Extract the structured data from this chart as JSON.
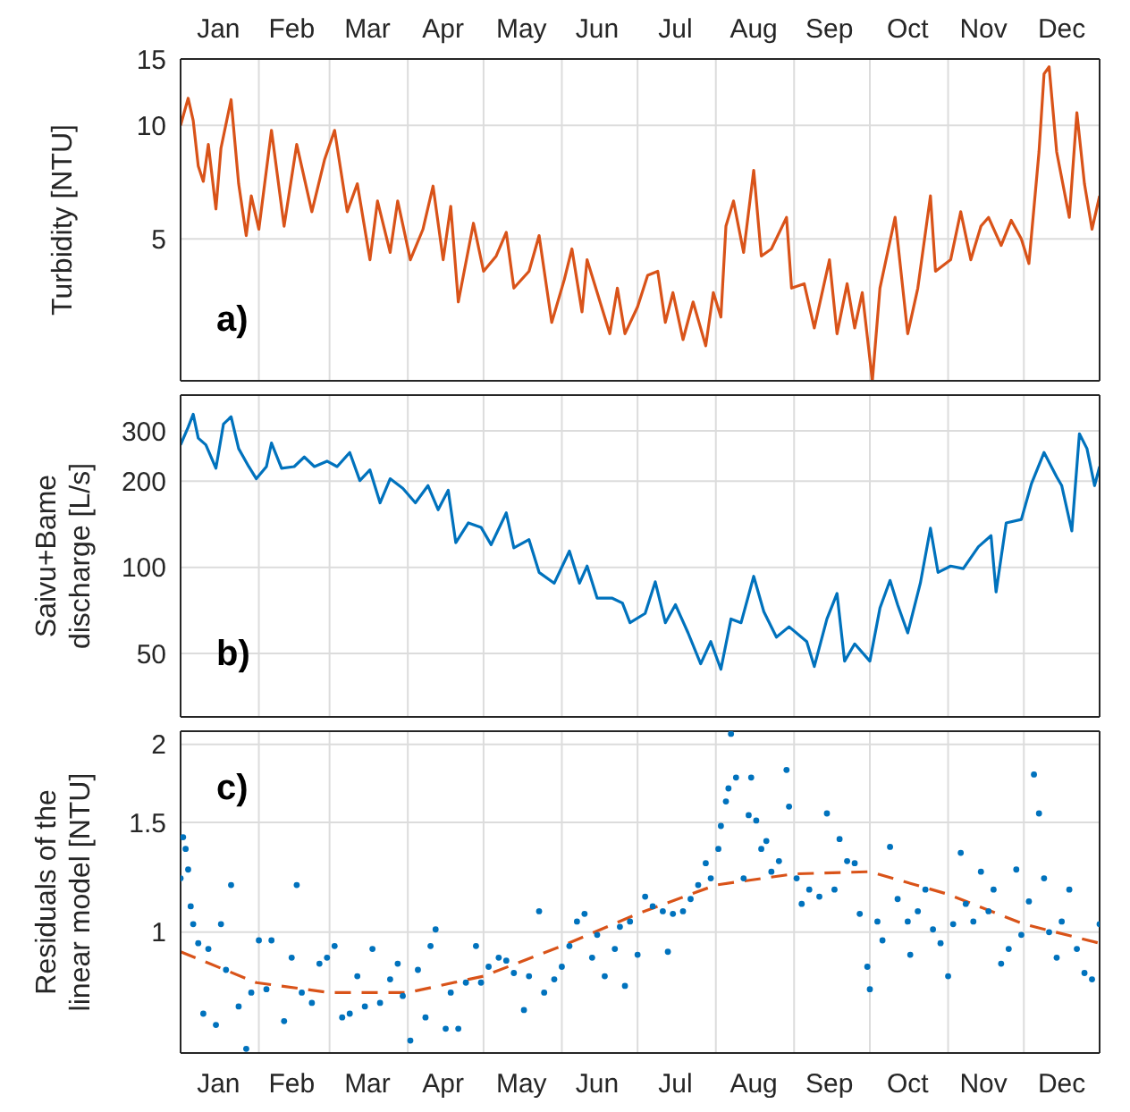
{
  "chart_data": [
    {
      "type": "line",
      "ylabel": "Turbidity [NTU]",
      "annotations": [
        "a)"
      ],
      "log": true,
      "grid": true,
      "marker": "none",
      "xlim": [
        "--01-01",
        "--12-31"
      ],
      "xticks": [
        {
          "value": "--01-16",
          "label": "Jan"
        },
        {
          "value": "--02-01",
          "label": null
        },
        {
          "value": "--02-14",
          "label": "Feb"
        },
        {
          "value": "--03-01",
          "label": null
        },
        {
          "value": "--03-16",
          "label": "Mar"
        },
        {
          "value": "--04-01",
          "label": null
        },
        {
          "value": "--04-15",
          "label": "Apr"
        },
        {
          "value": "--05-01",
          "label": null
        },
        {
          "value": "--05-16",
          "label": "May"
        },
        {
          "value": "--06-01",
          "label": null
        },
        {
          "value": "--06-15",
          "label": "Jun"
        },
        {
          "value": "--07-01",
          "label": null
        },
        {
          "value": "--07-16",
          "label": "Jul"
        },
        {
          "value": "--08-01",
          "label": null
        },
        {
          "value": "--08-16",
          "label": "Aug"
        },
        {
          "value": "--09-01",
          "label": null
        },
        {
          "value": "--09-15",
          "label": "Sep"
        },
        {
          "value": "--10-01",
          "label": null
        },
        {
          "value": "--10-16",
          "label": "Oct"
        },
        {
          "value": "--11-01",
          "label": null
        },
        {
          "value": "--11-15",
          "label": "Nov"
        },
        {
          "value": "--12-01",
          "label": null
        },
        {
          "value": "--12-16",
          "label": "Dec"
        }
      ],
      "ylim": [
        2.1,
        15
      ],
      "yticks": [
        5,
        10,
        15
      ],
      "series": [
        {
          "color": "#d95319",
          "x": [
            "--01-01",
            "--01-04",
            "--01-06",
            "--01-08",
            "--01-10",
            "--01-12",
            "--01-15",
            "--01-17",
            "--01-21",
            "--01-24",
            "--01-27",
            "--01-29",
            "--02-01",
            "--02-06",
            "--02-11",
            "--02-16",
            "--02-22",
            "--02-27",
            "--03-03",
            "--03-08",
            "--03-12",
            "--03-17",
            "--03-20",
            "--03-25",
            "--03-28",
            "--04-02",
            "--04-07",
            "--04-11",
            "--04-15",
            "--04-18",
            "--04-21",
            "--04-27",
            "--05-01",
            "--05-06",
            "--05-10",
            "--05-13",
            "--05-19",
            "--05-23",
            "--05-28",
            "--06-02",
            "--06-05",
            "--06-09",
            "--06-11",
            "--06-15",
            "--06-20",
            "--06-23",
            "--06-26",
            "--07-01",
            "--07-05",
            "--07-09",
            "--07-12",
            "--07-15",
            "--07-19",
            "--07-23",
            "--07-28",
            "--07-31",
            "--08-03",
            "--08-05",
            "--08-08",
            "--08-12",
            "--08-16",
            "--08-19",
            "--08-23",
            "--08-29",
            "--08-31",
            "--09-05",
            "--09-09",
            "--09-15",
            "--09-18",
            "--09-22",
            "--09-25",
            "--09-28",
            "--10-02",
            "--10-05",
            "--10-11",
            "--10-16",
            "--10-20",
            "--10-25",
            "--10-27",
            "--11-02",
            "--11-06",
            "--11-10",
            "--11-14",
            "--11-17",
            "--11-22",
            "--11-26",
            "--11-30",
            "--12-03",
            "--12-07",
            "--12-09",
            "--12-11",
            "--12-14",
            "--12-19",
            "--12-22",
            "--12-25",
            "--12-28",
            "--12-31"
          ],
          "values": [
            10,
            11.8,
            10.3,
            7.8,
            7.1,
            8.9,
            6.0,
            8.7,
            11.7,
            7.0,
            5.1,
            6.5,
            5.3,
            9.7,
            5.4,
            8.9,
            5.9,
            8.1,
            9.7,
            5.9,
            7.0,
            4.4,
            6.3,
            4.6,
            6.3,
            4.4,
            5.3,
            6.9,
            4.4,
            6.1,
            3.4,
            5.5,
            4.1,
            4.5,
            5.2,
            3.7,
            4.1,
            5.1,
            3.0,
            3.9,
            4.7,
            3.2,
            4.4,
            3.6,
            2.8,
            3.7,
            2.8,
            3.3,
            4.0,
            4.1,
            3.0,
            3.6,
            2.7,
            3.4,
            2.6,
            3.6,
            3.1,
            5.4,
            6.3,
            4.6,
            7.6,
            4.5,
            4.7,
            5.7,
            3.7,
            3.8,
            2.9,
            4.4,
            2.8,
            3.8,
            2.9,
            3.6,
            2.1,
            3.7,
            5.7,
            2.8,
            3.7,
            6.5,
            4.1,
            4.4,
            5.9,
            4.4,
            5.4,
            5.7,
            4.8,
            5.6,
            5.0,
            4.3,
            8.5,
            13.7,
            14.3,
            8.5,
            5.7,
            10.8,
            7.0,
            5.3,
            6.5
          ]
        }
      ]
    },
    {
      "type": "line",
      "ylabel": "Saivu+Bame discharge [L/s]",
      "annotations": [
        "b)"
      ],
      "log": true,
      "grid": true,
      "marker": "none",
      "tick_labels": "y",
      "xlim": [
        "--01-01",
        "--12-31"
      ],
      "xticks": [
        {
          "value": "--02-01",
          "label": null
        },
        {
          "value": "--03-01",
          "label": null
        },
        {
          "value": "--04-01",
          "label": null
        },
        {
          "value": "--05-01",
          "label": null
        },
        {
          "value": "--06-01",
          "label": null
        },
        {
          "value": "--07-01",
          "label": null
        },
        {
          "value": "--08-01",
          "label": null
        },
        {
          "value": "--09-01",
          "label": null
        },
        {
          "value": "--10-01",
          "label": null
        },
        {
          "value": "--11-01",
          "label": null
        },
        {
          "value": "--12-01",
          "label": null
        }
      ],
      "ylim": [
        30,
        400
      ],
      "yticks": [
        50,
        100,
        200,
        300
      ],
      "series": [
        {
          "color": "#0072bd",
          "x": [
            "--01-01",
            "--01-04",
            "--01-06",
            "--01-08",
            "--01-11",
            "--01-15",
            "--01-18",
            "--01-21",
            "--01-24",
            "--01-28",
            "--01-31",
            "--02-04",
            "--02-06",
            "--02-10",
            "--02-15",
            "--02-19",
            "--02-23",
            "--02-28",
            "--03-04",
            "--03-09",
            "--03-13",
            "--03-17",
            "--03-21",
            "--03-25",
            "--03-30",
            "--04-04",
            "--04-09",
            "--04-13",
            "--04-17",
            "--04-20",
            "--04-25",
            "--04-30",
            "--05-04",
            "--05-10",
            "--05-13",
            "--05-19",
            "--05-23",
            "--05-29",
            "--06-04",
            "--06-08",
            "--06-11",
            "--06-15",
            "--06-21",
            "--06-25",
            "--06-28",
            "--07-04",
            "--07-08",
            "--07-12",
            "--07-16",
            "--07-21",
            "--07-26",
            "--07-30",
            "--08-03",
            "--08-07",
            "--08-11",
            "--08-16",
            "--08-20",
            "--08-25",
            "--08-30",
            "--09-06",
            "--09-09",
            "--09-14",
            "--09-18",
            "--09-21",
            "--09-25",
            "--10-01",
            "--10-05",
            "--10-09",
            "--10-12",
            "--10-16",
            "--10-21",
            "--10-25",
            "--10-28",
            "--11-02",
            "--11-07",
            "--11-13",
            "--11-18",
            "--11-20",
            "--11-24",
            "--11-30",
            "--12-04",
            "--12-09",
            "--12-14",
            "--12-16",
            "--12-20",
            "--12-23",
            "--12-26",
            "--12-29",
            "--12-31"
          ],
          "values": [
            268,
            309,
            343,
            283,
            268,
            222,
            317,
            336,
            260,
            225,
            204,
            225,
            272,
            222,
            225,
            243,
            225,
            235,
            225,
            252,
            201,
            219,
            168,
            204,
            189,
            168,
            193,
            159,
            186,
            122,
            143,
            138,
            120,
            155,
            117,
            125,
            96,
            88,
            114,
            88,
            101,
            78,
            78,
            75,
            64,
            69,
            89,
            64,
            74,
            59,
            46,
            55,
            44,
            66,
            64,
            93,
            70,
            57,
            62,
            55,
            45,
            66,
            81,
            47,
            54,
            47,
            72,
            90,
            74,
            59,
            88,
            137,
            96,
            101,
            99,
            118,
            129,
            82,
            143,
            147,
            196,
            252,
            207,
            193,
            134,
            293,
            260,
            193,
            225
          ]
        }
      ]
    },
    {
      "type": "scatter",
      "ylabel": "Residuals of the linear model [NTU]",
      "annotations": [
        "c)"
      ],
      "log": true,
      "grid": true,
      "xlim": [
        "--01-01",
        "--12-31"
      ],
      "xticks": [
        {
          "value": "--01-16",
          "label": "Jan"
        },
        {
          "value": "--02-01",
          "label": null
        },
        {
          "value": "--02-14",
          "label": "Feb"
        },
        {
          "value": "--03-01",
          "label": null
        },
        {
          "value": "--03-16",
          "label": "Mar"
        },
        {
          "value": "--04-01",
          "label": null
        },
        {
          "value": "--04-15",
          "label": "Apr"
        },
        {
          "value": "--05-01",
          "label": null
        },
        {
          "value": "--05-16",
          "label": "May"
        },
        {
          "value": "--06-01",
          "label": null
        },
        {
          "value": "--06-15",
          "label": "Jun"
        },
        {
          "value": "--07-01",
          "label": null
        },
        {
          "value": "--07-16",
          "label": "Jul"
        },
        {
          "value": "--08-01",
          "label": null
        },
        {
          "value": "--08-16",
          "label": "Aug"
        },
        {
          "value": "--09-01",
          "label": null
        },
        {
          "value": "--09-15",
          "label": "Sep"
        },
        {
          "value": "--10-01",
          "label": null
        },
        {
          "value": "--10-16",
          "label": "Oct"
        },
        {
          "value": "--11-01",
          "label": null
        },
        {
          "value": "--11-15",
          "label": "Nov"
        },
        {
          "value": "--12-01",
          "label": null
        },
        {
          "value": "--12-16",
          "label": "Dec"
        }
      ],
      "ylim": [
        0.64,
        2.1
      ],
      "yticks": [
        1,
        1.5,
        2
      ],
      "series": [
        {
          "color": "#0072bd",
          "marker": "circle",
          "x": [
            "--01-01",
            "--01-02",
            "--01-03",
            "--01-04",
            "--01-05",
            "--01-06",
            "--01-08",
            "--01-10",
            "--01-12",
            "--01-15",
            "--01-17",
            "--01-19",
            "--01-21",
            "--01-24",
            "--01-27",
            "--01-29",
            "--02-01",
            "--02-04",
            "--02-06",
            "--02-11",
            "--02-14",
            "--02-16",
            "--02-18",
            "--02-22",
            "--02-25",
            "--02-28",
            "--03-03",
            "--03-06",
            "--03-09",
            "--03-12",
            "--03-15",
            "--03-18",
            "--03-21",
            "--03-25",
            "--03-28",
            "--03-30",
            "--04-02",
            "--04-05",
            "--04-08",
            "--04-10",
            "--04-12",
            "--04-16",
            "--04-18",
            "--04-21",
            "--04-24",
            "--04-28",
            "--04-30",
            "--05-03",
            "--05-07",
            "--05-10",
            "--05-13",
            "--05-17",
            "--05-19",
            "--05-23",
            "--05-25",
            "--05-29",
            "--06-01",
            "--06-04",
            "--06-07",
            "--06-10",
            "--06-13",
            "--06-15",
            "--06-18",
            "--06-22",
            "--06-24",
            "--06-26",
            "--06-28",
            "--07-01",
            "--07-04",
            "--07-07",
            "--07-11",
            "--07-13",
            "--07-15",
            "--07-19",
            "--07-22",
            "--07-25",
            "--07-28",
            "--07-30",
            "--08-02",
            "--08-03",
            "--08-05",
            "--08-06",
            "--08-07",
            "--08-09",
            "--08-12",
            "--08-14",
            "--08-15",
            "--08-17",
            "--08-19",
            "--08-21",
            "--08-23",
            "--08-26",
            "--08-29",
            "--08-30",
            "--09-02",
            "--09-04",
            "--09-07",
            "--09-11",
            "--09-14",
            "--09-17",
            "--09-19",
            "--09-22",
            "--09-25",
            "--09-27",
            "--09-30",
            "--10-01",
            "--10-04",
            "--10-06",
            "--10-09",
            "--10-12",
            "--10-16",
            "--10-17",
            "--10-20",
            "--10-23",
            "--10-26",
            "--10-29",
            "--11-01",
            "--11-03",
            "--11-06",
            "--11-08",
            "--11-11",
            "--11-14",
            "--11-17",
            "--11-19",
            "--11-22",
            "--11-25",
            "--11-28",
            "--11-30",
            "--12-03",
            "--12-05",
            "--12-07",
            "--12-09",
            "--12-11",
            "--12-14",
            "--12-16",
            "--12-19",
            "--12-22",
            "--12-25",
            "--12-28",
            "--12-31"
          ],
          "values": [
            1.22,
            1.42,
            1.36,
            1.26,
            1.1,
            1.03,
            0.96,
            0.74,
            0.94,
            0.71,
            1.03,
            0.87,
            1.19,
            0.76,
            0.65,
            0.8,
            0.97,
            0.81,
            0.97,
            0.72,
            0.91,
            1.19,
            0.8,
            0.77,
            0.89,
            0.91,
            0.95,
            0.73,
            0.74,
            0.85,
            0.76,
            0.94,
            0.77,
            0.84,
            0.89,
            0.79,
            0.67,
            0.87,
            0.73,
            0.95,
            1.01,
            0.7,
            0.8,
            0.7,
            0.83,
            0.95,
            0.83,
            0.88,
            0.91,
            0.9,
            0.86,
            0.75,
            0.85,
            1.08,
            0.8,
            0.84,
            0.88,
            0.95,
            1.04,
            1.07,
            0.91,
            0.99,
            0.85,
            0.94,
            1.02,
            0.82,
            1.04,
            0.92,
            1.14,
            1.1,
            1.08,
            0.93,
            1.07,
            1.08,
            1.13,
            1.19,
            1.29,
            1.22,
            1.36,
            1.48,
            1.62,
            1.7,
            2.08,
            1.77,
            1.22,
            1.54,
            1.77,
            1.51,
            1.36,
            1.4,
            1.25,
            1.3,
            1.82,
            1.59,
            1.22,
            1.11,
            1.17,
            1.14,
            1.55,
            1.17,
            1.41,
            1.3,
            1.29,
            1.07,
            0.88,
            0.81,
            1.04,
            0.97,
            1.37,
            1.13,
            1.04,
            0.92,
            1.08,
            1.17,
            1.01,
            0.96,
            0.85,
            1.03,
            1.34,
            1.11,
            1.04,
            1.25,
            1.08,
            1.17,
            0.89,
            0.94,
            1.26,
            0.99,
            1.12,
            1.79,
            1.55,
            1.22,
            1.0,
            0.91,
            1.04,
            1.17,
            0.94,
            0.86,
            0.84,
            1.03
          ]
        },
        {
          "type": "line",
          "color": "#d95319",
          "line_style": "dashed",
          "x": [
            "--01-01",
            "--01-31",
            "--03-01",
            "--04-01",
            "--05-01",
            "--06-01",
            "--07-01",
            "--08-01",
            "--09-01",
            "--10-01",
            "--11-01",
            "--12-01",
            "--12-31"
          ],
          "values": [
            0.93,
            0.83,
            0.8,
            0.8,
            0.85,
            0.95,
            1.07,
            1.19,
            1.24,
            1.25,
            1.15,
            1.03,
            0.96
          ]
        }
      ]
    }
  ]
}
